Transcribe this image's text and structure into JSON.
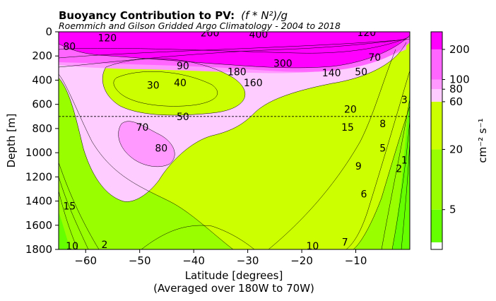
{
  "chart_data": {
    "type": "contour",
    "title": "Buoyancy Contribution to PV:",
    "title_formula": "(f * N²)/g",
    "subtitle": "Roemmich and Gilson Gridded Argo Climatology - 2004 to 2018",
    "xlabel": "Latitude [degrees]",
    "xlabel_note": "(Averaged over 180W to 70W)",
    "ylabel": "Depth [m]",
    "xlim": [
      -65,
      0
    ],
    "ylim": [
      1800,
      0
    ],
    "x_ticks": [
      -60,
      -50,
      -40,
      -30,
      -20,
      -10
    ],
    "x_tick_labels": [
      "−60",
      "−50",
      "−40",
      "−30",
      "−20",
      "−10"
    ],
    "y_ticks": [
      0,
      200,
      400,
      600,
      800,
      1000,
      1200,
      1400,
      1600,
      1800
    ],
    "y_tick_labels": [
      "0",
      "200",
      "400",
      "600",
      "800",
      "1000",
      "1200",
      "1400",
      "1600",
      "1800"
    ],
    "reference_line_depth": 700,
    "colorbar": {
      "label": "cm⁻² s⁻¹",
      "ticks": [
        5,
        20,
        60,
        80,
        100,
        200
      ],
      "tick_labels": [
        "5",
        "20",
        "60",
        "80",
        "100",
        "200"
      ],
      "bands": [
        {
          "from": 2,
          "to": 5,
          "color": "#66ff00"
        },
        {
          "from": 5,
          "to": 20,
          "color": "#99ff00"
        },
        {
          "from": 20,
          "to": 60,
          "color": "#ccff00"
        },
        {
          "from": 60,
          "to": 80,
          "color": "#ffccff"
        },
        {
          "from": 80,
          "to": 100,
          "color": "#ff99ff"
        },
        {
          "from": 100,
          "to": 200,
          "color": "#ff66ff"
        },
        {
          "from": 200,
          "to": 300,
          "color": "#ff00ff"
        }
      ]
    },
    "contour_labels": [
      {
        "text": "80",
        "lat": -63,
        "depth": 120
      },
      {
        "text": "120",
        "lat": -56,
        "depth": 50
      },
      {
        "text": "200",
        "lat": -37,
        "depth": 10
      },
      {
        "text": "400",
        "lat": -28,
        "depth": 20
      },
      {
        "text": "120",
        "lat": -8,
        "depth": 5
      },
      {
        "text": "300",
        "lat": -23.5,
        "depth": 260
      },
      {
        "text": "90",
        "lat": -42,
        "depth": 280
      },
      {
        "text": "180",
        "lat": -32,
        "depth": 330
      },
      {
        "text": "160",
        "lat": -29,
        "depth": 420
      },
      {
        "text": "140",
        "lat": -14.5,
        "depth": 340
      },
      {
        "text": "50",
        "lat": -9,
        "depth": 330
      },
      {
        "text": "70",
        "lat": -6.5,
        "depth": 210
      },
      {
        "text": "30",
        "lat": -47.5,
        "depth": 440
      },
      {
        "text": "40",
        "lat": -42.5,
        "depth": 420
      },
      {
        "text": "50",
        "lat": -42,
        "depth": 700
      },
      {
        "text": "70",
        "lat": -49.5,
        "depth": 790
      },
      {
        "text": "80",
        "lat": -46,
        "depth": 960
      },
      {
        "text": "20",
        "lat": -11,
        "depth": 640
      },
      {
        "text": "15",
        "lat": -11.5,
        "depth": 790
      },
      {
        "text": "8",
        "lat": -5,
        "depth": 760
      },
      {
        "text": "3",
        "lat": -1,
        "depth": 560
      },
      {
        "text": "5",
        "lat": -5,
        "depth": 960
      },
      {
        "text": "9",
        "lat": -9.5,
        "depth": 1110
      },
      {
        "text": "2",
        "lat": -2,
        "depth": 1130
      },
      {
        "text": "1",
        "lat": -1,
        "depth": 1060
      },
      {
        "text": "6",
        "lat": -8.5,
        "depth": 1340
      },
      {
        "text": "15",
        "lat": -63,
        "depth": 1440
      },
      {
        "text": "10",
        "lat": -62.5,
        "depth": 1770
      },
      {
        "text": "2",
        "lat": -56.5,
        "depth": 1760
      },
      {
        "text": "10",
        "lat": -18,
        "depth": 1770
      },
      {
        "text": "7",
        "lat": -12,
        "depth": 1740
      }
    ]
  }
}
